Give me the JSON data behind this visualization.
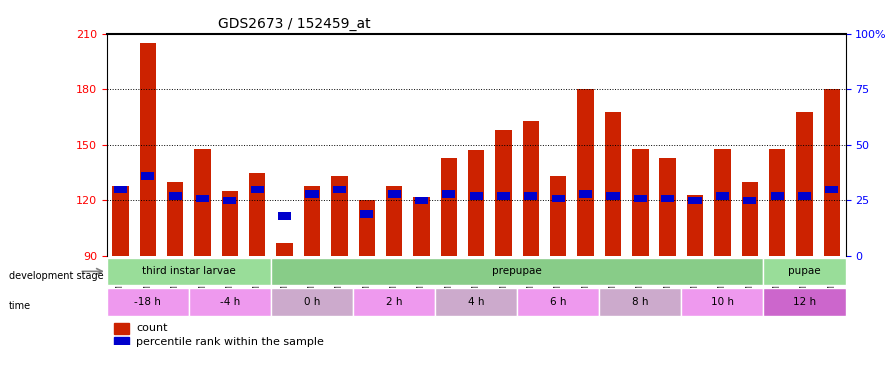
{
  "title": "GDS2673 / 152459_at",
  "samples": [
    "GSM67088",
    "GSM67089",
    "GSM67090",
    "GSM67091",
    "GSM67092",
    "GSM67093",
    "GSM67094",
    "GSM67095",
    "GSM67096",
    "GSM67097",
    "GSM67098",
    "GSM67099",
    "GSM67100",
    "GSM67101",
    "GSM67102",
    "GSM67103",
    "GSM67105",
    "GSM67106",
    "GSM67107",
    "GSM67108",
    "GSM67109",
    "GSM67111",
    "GSM67113",
    "GSM67114",
    "GSM67115",
    "GSM67116",
    "GSM67117"
  ],
  "counts": [
    128,
    205,
    130,
    148,
    125,
    135,
    97,
    128,
    133,
    120,
    128,
    122,
    143,
    147,
    158,
    163,
    133,
    180,
    168,
    148,
    143,
    123,
    148,
    130,
    148,
    168,
    180
  ],
  "percentile_ranks": [
    30,
    36,
    27,
    26,
    25,
    30,
    18,
    28,
    30,
    19,
    28,
    25,
    28,
    27,
    27,
    27,
    26,
    28,
    27,
    26,
    26,
    25,
    27,
    25,
    27,
    27,
    30
  ],
  "ymin": 90,
  "ymax": 210,
  "yticks": [
    90,
    120,
    150,
    180,
    210
  ],
  "right_yticks": [
    0,
    25,
    50,
    75,
    100
  ],
  "right_yticklabels": [
    "0",
    "25",
    "50",
    "75",
    "100%"
  ],
  "bar_color": "#cc2200",
  "pct_color": "#0000cc",
  "background_color": "#ffffff",
  "grid_color": "#000000",
  "dev_stage_groups": [
    {
      "label": "third instar larvae",
      "start": 0,
      "end": 6,
      "color": "#99ee99"
    },
    {
      "label": "prepupae",
      "start": 6,
      "end": 24,
      "color": "#99ee99"
    },
    {
      "label": "pupae",
      "start": 24,
      "end": 27,
      "color": "#99ee99"
    }
  ],
  "time_groups": [
    {
      "label": "-18 h",
      "start": 0,
      "end": 3,
      "color": "#ee99ee"
    },
    {
      "label": "-4 h",
      "start": 3,
      "end": 6,
      "color": "#ee99ee"
    },
    {
      "label": "0 h",
      "start": 6,
      "end": 9,
      "color": "#ddaadd"
    },
    {
      "label": "2 h",
      "start": 9,
      "end": 12,
      "color": "#ee99ee"
    },
    {
      "label": "4 h",
      "start": 12,
      "end": 15,
      "color": "#ddaadd"
    },
    {
      "label": "6 h",
      "start": 15,
      "end": 18,
      "color": "#ee99ee"
    },
    {
      "label": "8 h",
      "start": 18,
      "end": 21,
      "color": "#ddaadd"
    },
    {
      "label": "10 h",
      "start": 21,
      "end": 24,
      "color": "#ee99ee"
    },
    {
      "label": "12 h",
      "start": 24,
      "end": 27,
      "color": "#cc66cc"
    }
  ],
  "dev_stage_colors": {
    "third instar larvae": "#99dd99",
    "prepupae": "#99dd99",
    "pupae": "#99dd99"
  }
}
